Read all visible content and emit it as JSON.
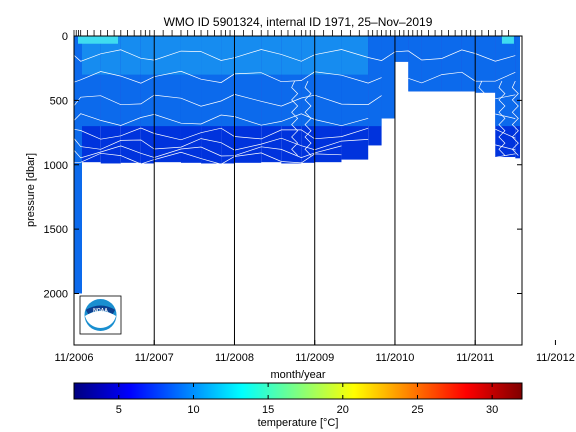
{
  "chart_data": {
    "type": "heatmap",
    "title": "WMO ID 5901324, internal ID 1971, 25–Nov–2019",
    "xlabel": "month/year",
    "ylabel": "pressure [dbar]",
    "x_ticks": [
      "11/2006",
      "11/2007",
      "11/2008",
      "11/2009",
      "11/2010",
      "11/2011",
      "11/2012"
    ],
    "x_range": [
      "2006-11",
      "2012-06"
    ],
    "y_ticks": [
      0,
      500,
      1000,
      1500,
      2000
    ],
    "y_range": [
      0,
      2400
    ],
    "y_reversed": true,
    "colorbar": {
      "label": "temperature [°C]",
      "ticks": [
        5,
        10,
        15,
        20,
        25,
        30
      ],
      "range": [
        2,
        32
      ],
      "colormap": "jet"
    },
    "profile_depth_series": {
      "x": [
        "2006-11",
        "2006-12",
        "2007-03",
        "2007-06",
        "2007-09",
        "2007-11",
        "2008-03",
        "2008-06",
        "2008-09",
        "2008-11",
        "2009-03",
        "2009-06",
        "2009-09",
        "2009-11",
        "2010-03",
        "2010-07",
        "2010-09",
        "2010-11",
        "2011-01",
        "2011-03",
        "2011-06",
        "2011-09",
        "2011-11",
        "2012-02",
        "2012-05"
      ],
      "max_pressure": [
        2000,
        980,
        990,
        985,
        990,
        980,
        985,
        990,
        990,
        985,
        980,
        990,
        985,
        980,
        960,
        850,
        640,
        200,
        430,
        430,
        430,
        430,
        440,
        940,
        950
      ]
    },
    "colors": {
      "deep": "#0033dd",
      "mid": "#0c6aec",
      "upper": "#1fa8f4",
      "surface": "#3fdcf0",
      "contour": "#ffffff",
      "cruise_line": "#000000"
    }
  },
  "logo": {
    "name": "NOAA"
  }
}
